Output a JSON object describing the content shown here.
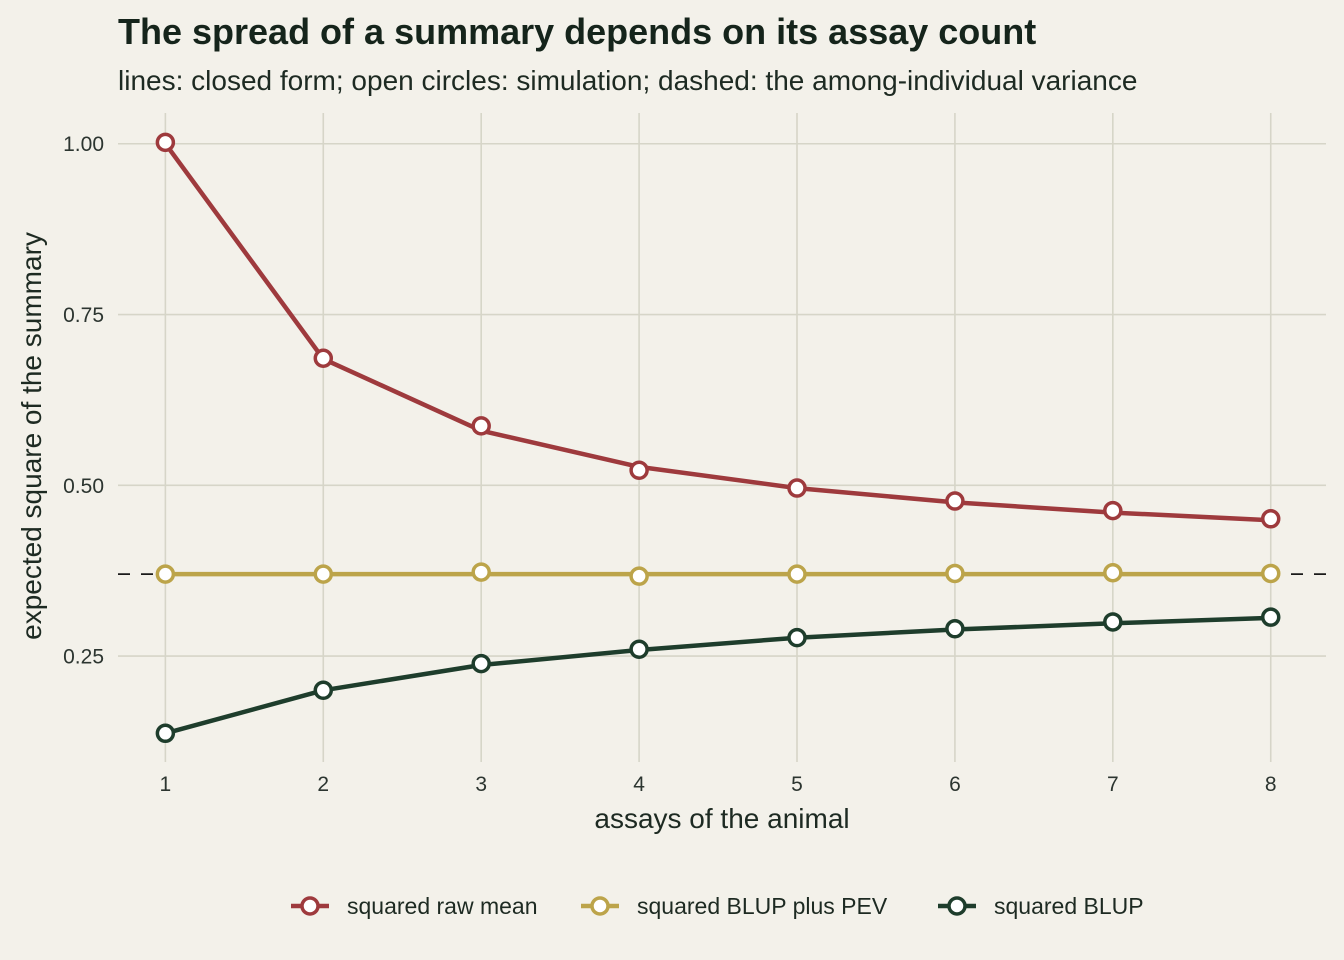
{
  "chart_data": {
    "type": "line",
    "title": "The spread of a summary depends on its assay count",
    "subtitle": "lines: closed form; open circles: simulation; dashed: the among-individual variance",
    "xlabel": "assays of the animal",
    "ylabel": "expected square of the summary",
    "x": [
      1,
      2,
      3,
      4,
      5,
      6,
      7,
      8
    ],
    "xticks": [
      "1",
      "2",
      "3",
      "4",
      "5",
      "6",
      "7",
      "8"
    ],
    "yticks": [
      {
        "value": 0.25,
        "label": "0.25"
      },
      {
        "value": 0.5,
        "label": "0.50"
      },
      {
        "value": 0.75,
        "label": "0.75"
      },
      {
        "value": 1.0,
        "label": "1.00"
      }
    ],
    "xlim": [
      0.7,
      8.35
    ],
    "ylim": [
      0.095,
      1.045
    ],
    "grid": true,
    "legend_position": "bottom",
    "reference_line": {
      "y": 0.37,
      "style": "dashed",
      "color": "#1a1a1a"
    },
    "series": [
      {
        "name": "squared raw mean",
        "color": "#9e3a3d",
        "line": [
          1.0,
          0.685,
          0.58,
          0.527,
          0.496,
          0.475,
          0.46,
          0.449
        ],
        "simulation": [
          1.002,
          0.686,
          0.587,
          0.522,
          0.496,
          0.477,
          0.463,
          0.451
        ]
      },
      {
        "name": "squared BLUP plus PEV",
        "color": "#bca44a",
        "line": [
          0.37,
          0.37,
          0.37,
          0.37,
          0.37,
          0.37,
          0.37,
          0.37
        ],
        "simulation": [
          0.37,
          0.37,
          0.373,
          0.367,
          0.37,
          0.371,
          0.372,
          0.371
        ]
      },
      {
        "name": "squared BLUP",
        "color": "#1e3d2c",
        "line": [
          0.137,
          0.2,
          0.237,
          0.259,
          0.277,
          0.289,
          0.298,
          0.306
        ],
        "simulation": [
          0.137,
          0.2,
          0.239,
          0.26,
          0.277,
          0.29,
          0.3,
          0.307
        ]
      }
    ]
  }
}
